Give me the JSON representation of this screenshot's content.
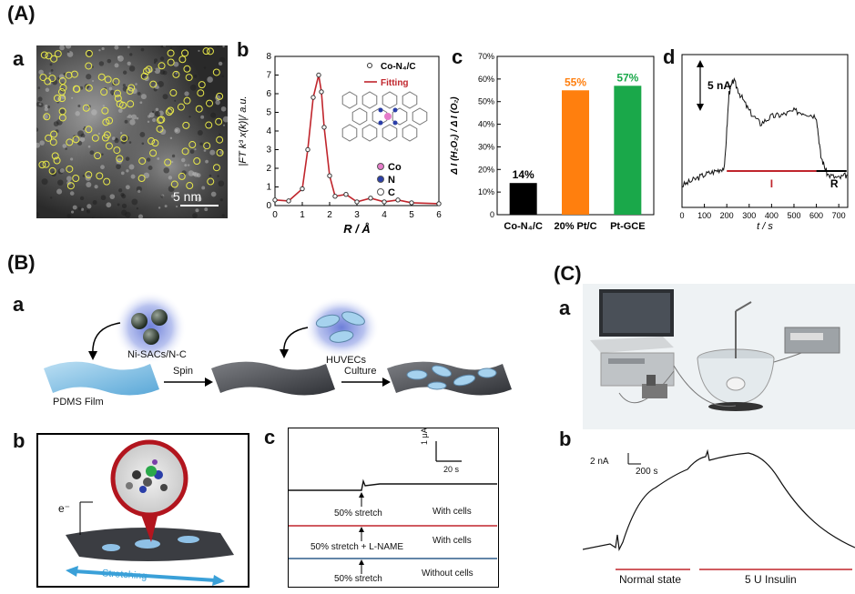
{
  "sections": {
    "A": "(A)",
    "B": "(B)",
    "C": "(C)"
  },
  "panel_letters": {
    "a": "a",
    "b": "b",
    "c": "c",
    "d": "d"
  },
  "A": {
    "a": {
      "scalebar": "5 nm"
    },
    "b": {
      "ylabel": "|FT k³ x(k)|/ a.u.",
      "xlabel": "R / Å",
      "xticks": [
        "0",
        "1",
        "2",
        "3",
        "4",
        "5",
        "6"
      ],
      "yticks": [
        "0",
        "1",
        "2",
        "3",
        "4",
        "5",
        "6",
        "7",
        "8"
      ],
      "legend": [
        "Co-N₄/C",
        "Fitting"
      ],
      "atoms": [
        "Co",
        "N",
        "C"
      ]
    },
    "c": {
      "ylabel": "Δ I (H₂O₂) / Δ I (O₂)",
      "yticks": [
        "0",
        "10%",
        "20%",
        "30%",
        "40%",
        "50%",
        "60%",
        "70%"
      ],
      "categories": [
        "Co-N₄/C",
        "20% Pt/C",
        "Pt-GCE"
      ],
      "value_labels": [
        "14%",
        "55%",
        "57%"
      ]
    },
    "d": {
      "scalebar": "5 nA",
      "xlabel": "t / s",
      "xticks": [
        "0",
        "100",
        "200",
        "300",
        "400",
        "500",
        "600",
        "700"
      ],
      "seg_labels": [
        "I",
        "R"
      ]
    }
  },
  "B": {
    "a": {
      "labels": {
        "particles": "Ni-SACs/N-C",
        "film": "PDMS Film",
        "cells": "HUVECs",
        "spin": "Spin",
        "culture": "Culture"
      }
    },
    "b": {
      "electron": "e⁻",
      "stretching": "Stretching"
    },
    "c": {
      "scale_y": "1 μA",
      "scale_x": "20 s",
      "traces": [
        {
          "stim": "50% stretch",
          "cond": "With cells"
        },
        {
          "stim": "50% stretch + L-NAME",
          "cond": "With cells"
        },
        {
          "stim": "50% stretch",
          "cond": "Without cells"
        }
      ]
    }
  },
  "C": {
    "b": {
      "scale_y": "2 nA",
      "scale_x": "200 s",
      "states": [
        "Normal state",
        "5 U Insulin"
      ]
    }
  },
  "chart_data": [
    {
      "type": "line",
      "x": [
        0,
        0.5,
        1.0,
        1.2,
        1.4,
        1.6,
        1.7,
        1.8,
        2.0,
        2.2,
        2.6,
        3.0,
        3.5,
        4.0,
        4.5,
        5.0,
        6.0
      ],
      "series": [
        {
          "name": "Co-N₄/C",
          "values": [
            0.3,
            0.25,
            0.9,
            3.0,
            5.8,
            7.0,
            6.1,
            4.2,
            1.6,
            0.5,
            0.6,
            0.2,
            0.4,
            0.2,
            0.3,
            0.15,
            0.1
          ]
        },
        {
          "name": "Fitting",
          "values": [
            0.3,
            0.25,
            0.9,
            3.0,
            5.8,
            7.0,
            6.1,
            4.2,
            1.6,
            0.5,
            0.6,
            0.2,
            0.4,
            0.2,
            0.3,
            0.15,
            0.1
          ]
        }
      ],
      "xlabel": "R / Å",
      "ylabel": "|FT k³ x(k)|/ a.u.",
      "xlim": [
        0,
        6
      ],
      "ylim": [
        0,
        8
      ]
    },
    {
      "type": "bar",
      "categories": [
        "Co-N₄/C",
        "20% Pt/C",
        "Pt-GCE"
      ],
      "values": [
        14,
        55,
        57
      ],
      "colors": [
        "#000000",
        "#ff7f0e",
        "#1aa84a"
      ],
      "ylabel": "Δ I (H₂O₂) / Δ I (O₂)",
      "ylim": [
        0,
        70
      ]
    },
    {
      "type": "line",
      "x": [
        0,
        50,
        100,
        150,
        190,
        210,
        230,
        260,
        300,
        350,
        400,
        450,
        500,
        550,
        600,
        620,
        650,
        700,
        740
      ],
      "series": [
        {
          "values": [
            0.2,
            0.5,
            0.8,
            1.0,
            1.2,
            5.3,
            6.0,
            5.2,
            4.3,
            3.6,
            4.0,
            4.1,
            4.3,
            4.2,
            4.0,
            1.8,
            0.8,
            0.6,
            0.8
          ]
        }
      ],
      "xlabel": "t / s",
      "xlim": [
        0,
        740
      ]
    }
  ]
}
